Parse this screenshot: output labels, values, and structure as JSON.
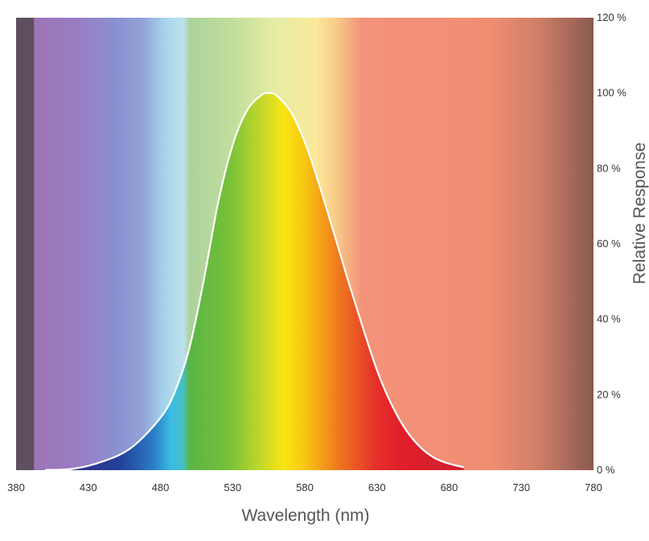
{
  "chart_data": {
    "type": "area",
    "title": "",
    "xlabel": "Wavelength (nm)",
    "ylabel": "Relative Response",
    "xlim": [
      380,
      780
    ],
    "ylim": [
      0,
      120
    ],
    "x_ticks": [
      380,
      430,
      480,
      530,
      580,
      630,
      680,
      730,
      780
    ],
    "y_ticks": [
      0,
      20,
      40,
      60,
      80,
      100,
      120
    ],
    "y_tick_labels": [
      "0 %",
      "20 %",
      "40 %",
      "60 %",
      "80 %",
      "100 %",
      "120 %"
    ],
    "grid": false,
    "legend": "none",
    "series": [
      {
        "x": [
          400,
          420,
          440,
          460,
          480,
          490,
          500,
          510,
          520,
          530,
          540,
          550,
          555,
          560,
          570,
          580,
          590,
          600,
          610,
          620,
          630,
          640,
          650,
          660,
          670,
          680,
          690
        ],
        "values": [
          0.04,
          0.4,
          2.3,
          6,
          13.9,
          20.8,
          32.3,
          50.3,
          71,
          86.2,
          95.4,
          99.5,
          100,
          99.5,
          95.2,
          87,
          75.7,
          63.1,
          50.3,
          38.1,
          26.5,
          17.5,
          10.7,
          6.1,
          3.2,
          1.7,
          0.8
        ]
      }
    ],
    "colors": {
      "curve_stroke": "#ffffff",
      "title": "#e8901a"
    }
  }
}
